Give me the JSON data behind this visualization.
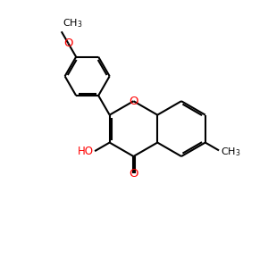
{
  "background_color": "#ffffff",
  "bond_color": "#000000",
  "heteroatom_color": "#ff0000",
  "lw": 1.5,
  "fs": 8.5,
  "figsize": [
    3.0,
    3.0
  ],
  "dpi": 100,
  "xlim": [
    0,
    10
  ],
  "ylim": [
    0,
    10
  ]
}
